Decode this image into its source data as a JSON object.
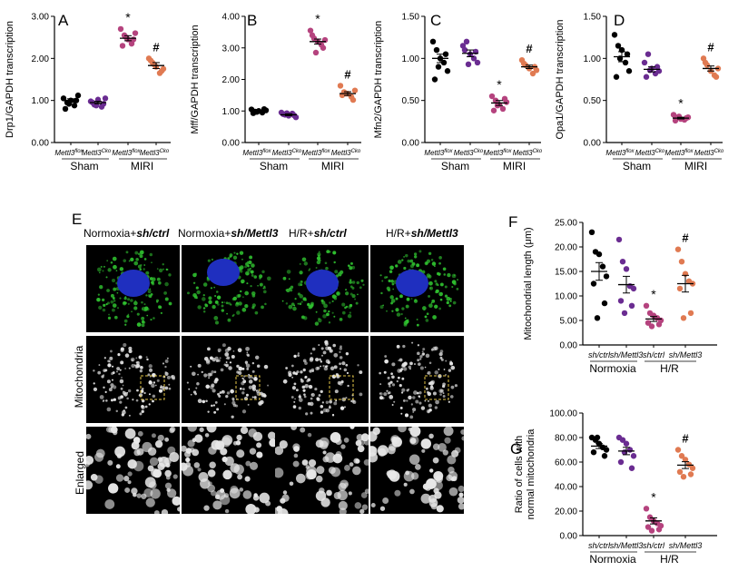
{
  "panels": {
    "A": "A",
    "B": "B",
    "C": "C",
    "D": "D",
    "E": "E",
    "F": "F",
    "G": "G"
  },
  "group_labels": {
    "sham": "Sham",
    "miri": "MIRI",
    "normoxia": "Normoxia",
    "hr": "H/R"
  },
  "genotype_ticks": [
    {
      "base": "Mettl3",
      "sup": "flox"
    },
    {
      "base": "Mettl3",
      "sup": "Cko"
    },
    {
      "base": "Mettl3",
      "sup": "flox"
    },
    {
      "base": "Mettl3",
      "sup": "Cko"
    }
  ],
  "sh_ticks": [
    "sh/ctrl",
    "sh/Mettl3",
    "sh/ctrl",
    "sh/Mettl3"
  ],
  "markers": {
    "star": "*",
    "hash": "#"
  },
  "colors": {
    "g1": "#000000",
    "g2": "#6a2c91",
    "g3": "#b5437e",
    "g4": "#e07a52"
  },
  "micrograph": {
    "column_headers": [
      {
        "pre": "Normoxia+",
        "it": "sh/ctrl"
      },
      {
        "pre": "Normoxia+",
        "it": "sh/Mettl3"
      },
      {
        "pre": "H/R+",
        "it": "sh/ctrl"
      },
      {
        "pre": "H/R+",
        "it": "sh/Mettl3"
      }
    ],
    "row_labels": [
      "Mitochondria",
      "Enlarged"
    ]
  },
  "chart_data": [
    {
      "id": "A",
      "type": "scatter",
      "ylabel": "Drp1/GAPDH transcription",
      "ylim": [
        0,
        3
      ],
      "yticks": [
        "0.00",
        "1.00",
        "2.00",
        "3.00"
      ],
      "groups": [
        {
          "values": [
            1.05,
            0.95,
            1.0,
            0.88,
            1.12,
            0.8,
            1.0,
            0.92
          ],
          "mean": 1.0,
          "sem": 0.04
        },
        {
          "values": [
            0.98,
            0.9,
            1.02,
            0.85,
            1.05,
            0.95,
            0.92,
            0.88
          ],
          "mean": 0.95,
          "sem": 0.03
        },
        {
          "values": [
            2.7,
            2.55,
            2.45,
            2.35,
            2.6,
            2.3,
            2.45,
            2.5
          ],
          "mean": 2.48,
          "sem": 0.06
        },
        {
          "values": [
            2.0,
            1.9,
            1.8,
            1.65,
            1.75,
            1.95,
            1.7,
            1.85
          ],
          "mean": 1.83,
          "sem": 0.07
        }
      ],
      "annotations": [
        {
          "group": 2,
          "symbol": "*"
        },
        {
          "group": 3,
          "symbol": "#"
        }
      ]
    },
    {
      "id": "B",
      "type": "scatter",
      "ylabel": "Mff/GAPDH transcription",
      "ylim": [
        0,
        4
      ],
      "yticks": [
        "0.00",
        "1.00",
        "2.00",
        "3.00",
        "4.00"
      ],
      "groups": [
        {
          "values": [
            1.05,
            0.98,
            1.0,
            0.95,
            1.02,
            0.93,
            1.06,
            0.97
          ],
          "mean": 1.0,
          "sem": 0.02
        },
        {
          "values": [
            0.95,
            0.88,
            0.85,
            0.92,
            0.8,
            0.9,
            0.86,
            0.93
          ],
          "mean": 0.88,
          "sem": 0.03
        },
        {
          "values": [
            3.55,
            3.3,
            3.2,
            3.1,
            3.25,
            3.4,
            3.0,
            2.85
          ],
          "mean": 3.2,
          "sem": 0.08
        },
        {
          "values": [
            1.8,
            1.6,
            1.55,
            1.45,
            1.65,
            1.5,
            1.35,
            1.55
          ],
          "mean": 1.55,
          "sem": 0.06
        }
      ],
      "annotations": [
        {
          "group": 2,
          "symbol": "*"
        },
        {
          "group": 3,
          "symbol": "#"
        }
      ]
    },
    {
      "id": "C",
      "type": "scatter",
      "ylabel": "Mfn2/GAPDH transcription",
      "ylim": [
        0,
        1.5
      ],
      "yticks": [
        "0.00",
        "0.50",
        "1.00",
        "1.50"
      ],
      "groups": [
        {
          "values": [
            1.2,
            1.1,
            1.0,
            0.95,
            0.85,
            0.75,
            1.05,
            0.9
          ],
          "mean": 1.0,
          "sem": 0.05
        },
        {
          "values": [
            1.15,
            1.2,
            1.05,
            1.0,
            0.95,
            1.1,
            1.08,
            0.93
          ],
          "mean": 1.06,
          "sem": 0.04
        },
        {
          "values": [
            0.55,
            0.5,
            0.45,
            0.4,
            0.48,
            0.38,
            0.52,
            0.44
          ],
          "mean": 0.47,
          "sem": 0.03
        },
        {
          "values": [
            0.98,
            0.92,
            0.88,
            0.82,
            0.86,
            0.94,
            0.9
          ],
          "mean": 0.9,
          "sem": 0.02
        }
      ],
      "annotations": [
        {
          "group": 2,
          "symbol": "*"
        },
        {
          "group": 3,
          "symbol": "#"
        }
      ]
    },
    {
      "id": "D",
      "type": "scatter",
      "ylabel": "Opa1/GAPDH transcription",
      "ylim": [
        0,
        1.5
      ],
      "yticks": [
        "0.00",
        "0.50",
        "1.00",
        "1.50"
      ],
      "groups": [
        {
          "values": [
            1.28,
            1.15,
            1.1,
            0.95,
            0.85,
            0.78,
            1.05,
            1.0
          ],
          "mean": 1.02,
          "sem": 0.06
        },
        {
          "values": [
            0.95,
            1.05,
            0.88,
            0.82,
            0.85,
            0.78,
            0.9,
            0.86
          ],
          "mean": 0.87,
          "sem": 0.03
        },
        {
          "values": [
            0.33,
            0.3,
            0.28,
            0.27,
            0.3,
            0.26,
            0.29,
            0.31
          ],
          "mean": 0.29,
          "sem": 0.01
        },
        {
          "values": [
            1.0,
            0.92,
            0.85,
            0.8,
            0.88,
            0.95,
            0.78
          ],
          "mean": 0.88,
          "sem": 0.03
        }
      ],
      "annotations": [
        {
          "group": 2,
          "symbol": "*"
        },
        {
          "group": 3,
          "symbol": "#"
        }
      ]
    },
    {
      "id": "F",
      "type": "scatter",
      "ylabel": "Mitochondrial length (μm)",
      "ylim": [
        0,
        25
      ],
      "yticks": [
        "0.00",
        "5.00",
        "10.00",
        "15.00",
        "20.00",
        "25.00"
      ],
      "groups": [
        {
          "values": [
            23.0,
            19.0,
            18.5,
            16.0,
            14.0,
            12.5,
            8.5,
            5.5
          ],
          "mean": 15.0,
          "sem": 1.8
        },
        {
          "values": [
            21.5,
            17.0,
            15.5,
            12.0,
            11.5,
            9.0,
            8.0,
            6.5
          ],
          "mean": 12.3,
          "sem": 1.7
        },
        {
          "values": [
            8.0,
            6.5,
            6.0,
            5.5,
            5.0,
            4.5,
            4.2,
            3.8
          ],
          "mean": 5.3,
          "sem": 0.5
        },
        {
          "values": [
            19.5,
            17.0,
            14.5,
            13.0,
            12.5,
            11.5,
            6.5,
            5.5
          ],
          "mean": 12.5,
          "sem": 1.7
        }
      ],
      "annotations": [
        {
          "group": 2,
          "symbol": "*"
        },
        {
          "group": 3,
          "symbol": "#"
        }
      ]
    },
    {
      "id": "G",
      "type": "scatter",
      "ylabel": [
        "Ratio of cells with",
        "normal mitochondria"
      ],
      "ylim": [
        0,
        100
      ],
      "yticks": [
        "0.00",
        "20.00",
        "40.00",
        "60.00",
        "80.00",
        "100.00"
      ],
      "groups": [
        {
          "values": [
            80.0,
            78.0,
            75.0,
            72.0,
            70.0,
            68.0,
            65.0,
            80.0
          ],
          "mean": 73.0,
          "sem": 2.0
        },
        {
          "values": [
            80.0,
            78.0,
            75.0,
            70.0,
            65.0,
            60.0,
            55.0,
            68.0
          ],
          "mean": 69.0,
          "sem": 3.0
        },
        {
          "values": [
            22.0,
            15.0,
            12.0,
            10.0,
            8.0,
            7.0,
            5.0,
            4.0
          ],
          "mean": 12.0,
          "sem": 2.5
        },
        {
          "values": [
            70.0,
            65.0,
            62.0,
            58.0,
            55.0,
            52.0,
            50.0,
            48.0
          ],
          "mean": 57.5,
          "sem": 2.8
        }
      ],
      "annotations": [
        {
          "group": 2,
          "symbol": "*"
        },
        {
          "group": 3,
          "symbol": "#"
        }
      ]
    }
  ]
}
